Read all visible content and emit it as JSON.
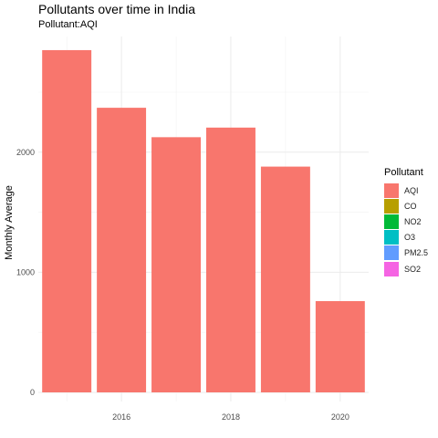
{
  "chart_data": {
    "type": "bar",
    "title": "Pollutants over time in India",
    "subtitle": "Pollutant:AQI",
    "xlabel": "",
    "ylabel": "Monthly Average",
    "x": [
      2015,
      2016,
      2017,
      2018,
      2019,
      2020
    ],
    "x_ticks": [
      "2016",
      "2018",
      "2020"
    ],
    "y_ticks": [
      "0",
      "1000",
      "2000"
    ],
    "ylim": [
      0,
      3000
    ],
    "series": [
      {
        "name": "AQI",
        "color": "#F8766D",
        "values": [
          2850,
          2370,
          2125,
          2205,
          1880,
          760
        ]
      }
    ],
    "grid": true,
    "legend": {
      "title": "Pollutant",
      "position": "right",
      "items": [
        {
          "label": "AQI",
          "color": "#F8766D"
        },
        {
          "label": "CO",
          "color": "#B79F00"
        },
        {
          "label": "NO2",
          "color": "#00BA38"
        },
        {
          "label": "O3",
          "color": "#00BFC4"
        },
        {
          "label": "PM2.5",
          "color": "#619CFF"
        },
        {
          "label": "SO2",
          "color": "#F564E3"
        }
      ]
    }
  }
}
